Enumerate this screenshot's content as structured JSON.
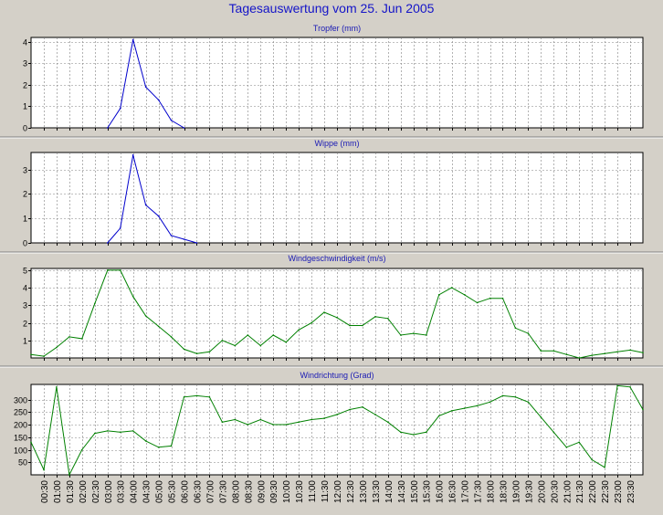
{
  "window": {
    "title": "Tagesauswertung vom 25. Jun 2005"
  },
  "colors": {
    "background": "#d4d0c8",
    "title": "#1414c8",
    "rain_line": "#0000cc",
    "wind_line": "#008000",
    "grid": "#808080"
  },
  "x_tick_labels": [
    "00:30",
    "01:00",
    "01:30",
    "02:00",
    "02:30",
    "03:00",
    "03:30",
    "04:00",
    "04:30",
    "05:00",
    "05:30",
    "06:00",
    "06:30",
    "07:00",
    "07:30",
    "08:00",
    "08:30",
    "09:00",
    "09:30",
    "10:00",
    "10:30",
    "11:00",
    "11:30",
    "12:00",
    "12:30",
    "13:00",
    "13:30",
    "14:00",
    "14:30",
    "15:00",
    "15:30",
    "16:00",
    "16:30",
    "17:00",
    "17:30",
    "18:00",
    "18:30",
    "19:00",
    "19:30",
    "20:00",
    "20:30",
    "21:00",
    "21:30",
    "22:00",
    "22:30",
    "23:00",
    "23:30"
  ],
  "chart_data": [
    {
      "type": "line",
      "title": "Tropfer (mm)",
      "x_unit": "hours",
      "xlim": [
        0,
        24
      ],
      "ylim": [
        0,
        4.2
      ],
      "yticks": [
        0,
        1,
        2,
        3,
        4
      ],
      "color": "#0000cc",
      "x": [
        3.0,
        3.5,
        4.0,
        4.5,
        5.0,
        5.5,
        6.0
      ],
      "y": [
        0,
        0.9,
        4.1,
        1.9,
        1.3,
        0.35,
        0
      ]
    },
    {
      "type": "line",
      "title": "Wippe (mm)",
      "x_unit": "hours",
      "xlim": [
        0,
        24
      ],
      "ylim": [
        0,
        3.7
      ],
      "yticks": [
        0,
        1,
        2,
        3
      ],
      "color": "#0000cc",
      "x": [
        3.0,
        3.5,
        4.0,
        4.5,
        5.0,
        5.5,
        6.0,
        6.5
      ],
      "y": [
        0,
        0.6,
        3.6,
        1.55,
        1.1,
        0.3,
        0.15,
        0
      ]
    },
    {
      "type": "line",
      "title": "Windgeschwindigkeit (m/s)",
      "x_unit": "hours",
      "xlim": [
        0,
        24
      ],
      "ylim": [
        0,
        5.1
      ],
      "yticks": [
        1,
        2,
        3,
        4,
        5
      ],
      "color": "#008000",
      "x": [
        0,
        0.5,
        1,
        1.5,
        2,
        2.5,
        3,
        3.5,
        4,
        4.5,
        5,
        5.5,
        6,
        6.5,
        7,
        7.5,
        8,
        8.5,
        9,
        9.5,
        10,
        10.5,
        11,
        11.5,
        12,
        12.5,
        13,
        13.5,
        14,
        14.5,
        15,
        15.5,
        16,
        16.5,
        17,
        17.5,
        18,
        18.5,
        19,
        19.5,
        20,
        20.5,
        21,
        21.5,
        22,
        22.5,
        23,
        23.5,
        24
      ],
      "y": [
        0.2,
        0.1,
        0.6,
        1.2,
        1.1,
        3.1,
        5.0,
        5.0,
        3.5,
        2.4,
        1.8,
        1.2,
        0.5,
        0.25,
        0.35,
        1.0,
        0.7,
        1.3,
        0.7,
        1.3,
        0.9,
        1.6,
        2.0,
        2.6,
        2.3,
        1.85,
        1.85,
        2.35,
        2.25,
        1.3,
        1.4,
        1.3,
        3.6,
        4.0,
        3.6,
        3.15,
        3.4,
        3.4,
        1.7,
        1.4,
        0.4,
        0.4,
        0.2,
        0.0,
        0.15,
        0.25,
        0.35,
        0.45,
        0.3
      ]
    },
    {
      "type": "line",
      "title": "Windrichtung (Grad)",
      "x_unit": "hours",
      "xlim": [
        0,
        24
      ],
      "ylim": [
        0,
        360
      ],
      "yticks": [
        50,
        100,
        150,
        200,
        250,
        300
      ],
      "color": "#008000",
      "x": [
        0,
        0.5,
        1,
        1.5,
        2,
        2.5,
        3,
        3.5,
        4,
        4.5,
        5,
        5.5,
        6,
        6.5,
        7,
        7.5,
        8,
        8.5,
        9,
        9.5,
        10,
        10.5,
        11,
        11.5,
        12,
        12.5,
        13,
        13.5,
        14,
        14.5,
        15,
        15.5,
        16,
        16.5,
        17,
        17.5,
        18,
        18.5,
        19,
        19.5,
        20,
        20.5,
        21,
        21.5,
        22,
        22.5,
        23,
        23.5,
        24
      ],
      "y": [
        130,
        20,
        350,
        0,
        100,
        165,
        175,
        170,
        175,
        135,
        110,
        115,
        310,
        315,
        310,
        210,
        220,
        200,
        220,
        200,
        200,
        210,
        220,
        225,
        240,
        260,
        270,
        240,
        210,
        170,
        160,
        170,
        235,
        255,
        265,
        275,
        290,
        315,
        310,
        290,
        230,
        170,
        110,
        130,
        60,
        30,
        355,
        350,
        260
      ]
    }
  ]
}
